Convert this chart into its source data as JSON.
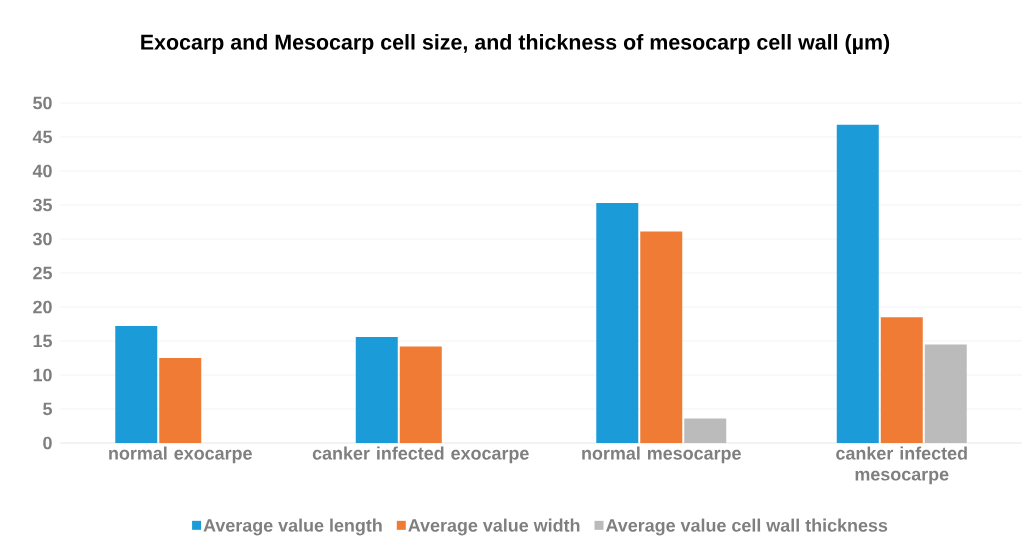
{
  "chart_data": {
    "type": "bar",
    "title": "Exocarp and Mesocarp cell size, and thickness of mesocarp cell wall (µm)",
    "categories": [
      "normal exocarpe",
      "canker infected exocarpe",
      "normal mesocarpe",
      "canker infected mesocarpe"
    ],
    "series": [
      {
        "name": "Average value length",
        "color": "#1b9cd8",
        "values": [
          17.2,
          15.6,
          35.3,
          46.8
        ]
      },
      {
        "name": "Average value width",
        "color": "#ef7b35",
        "values": [
          12.5,
          14.2,
          31.1,
          18.5
        ]
      },
      {
        "name": "Average value cell wall thickness",
        "color": "#bbbbbb",
        "values": [
          null,
          null,
          3.6,
          14.5
        ]
      }
    ],
    "ylim": [
      0,
      50
    ],
    "yticks": [
      0,
      5,
      10,
      15,
      20,
      25,
      30,
      35,
      40,
      45,
      50
    ],
    "grid": "y",
    "legend": "bottom"
  }
}
